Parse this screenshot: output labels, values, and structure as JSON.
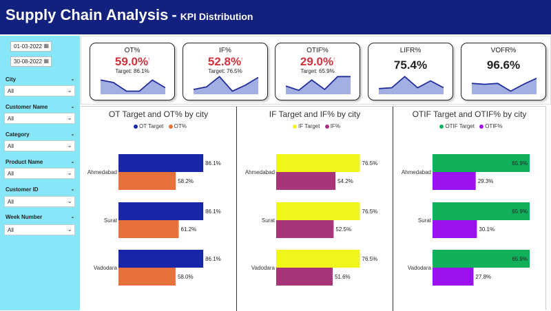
{
  "header": {
    "title": "Supply Chain Analysis",
    "separator": "-",
    "subtitle": "KPI Distribution",
    "color": "#13217e"
  },
  "filters": {
    "date_from": "01-03-2022",
    "date_to": "30-08-2022",
    "slicers": [
      {
        "label": "City",
        "value": "All"
      },
      {
        "label": "Customer Name",
        "value": "All"
      },
      {
        "label": "Category",
        "value": "All"
      },
      {
        "label": "Product Name",
        "value": "All"
      },
      {
        "label": "Customer ID",
        "value": "All"
      },
      {
        "label": "Week Number",
        "value": "All"
      }
    ]
  },
  "kpis": [
    {
      "label": "OT%",
      "value": "59.0%",
      "flag": "!",
      "target": "Target: 86.1%",
      "trend": [
        0.75,
        0.6,
        0.1,
        0.1,
        0.75,
        0.3
      ]
    },
    {
      "label": "IF%",
      "value": "52.8%",
      "flag": "!",
      "target": "Target: 76.5%",
      "trend": [
        0.2,
        0.35,
        0.95,
        0.1,
        0.45,
        0.9
      ]
    },
    {
      "label": "OTIF%",
      "value": "29.0%",
      "flag": "!",
      "target": "Target: 65.9%",
      "trend": [
        0.4,
        0.15,
        0.75,
        0.2,
        0.95,
        0.95
      ]
    },
    {
      "label": "LIFR%",
      "value": "75.4%",
      "flag": "",
      "target": "",
      "trend": [
        0.25,
        0.3,
        0.95,
        0.3,
        0.7,
        0.3
      ]
    },
    {
      "label": "VOFR%",
      "value": "96.6%",
      "flag": "",
      "target": "",
      "trend": [
        0.55,
        0.5,
        0.55,
        0.1,
        0.5,
        0.85
      ]
    }
  ],
  "chart_data": [
    {
      "type": "bar",
      "title": "OT Target and OT% by city",
      "categories": [
        "Ahmedabad",
        "Surat",
        "Vadodara"
      ],
      "series": [
        {
          "name": "OT Target",
          "values": [
            86.1,
            86.1,
            86.1
          ],
          "color": "#1726a8"
        },
        {
          "name": "OT%",
          "values": [
            58.2,
            61.2,
            58.0
          ],
          "color": "#e8703a"
        }
      ],
      "labels": [
        [
          "86.1%",
          "86.1%",
          "86.1%"
        ],
        [
          "58.2%",
          "61.2%",
          "58.0%"
        ]
      ],
      "xlim": [
        0,
        100
      ]
    },
    {
      "type": "bar",
      "title": "IF Target and IF% by city",
      "categories": [
        "Ahmedabad",
        "Surat",
        "Vadodara"
      ],
      "series": [
        {
          "name": "IF Target",
          "values": [
            76.5,
            76.5,
            76.5
          ],
          "color": "#f0f51a"
        },
        {
          "name": "IF%",
          "values": [
            54.2,
            52.5,
            51.6
          ],
          "color": "#a8357a"
        }
      ],
      "labels": [
        [
          "76.5%",
          "76.5%",
          "76.5%"
        ],
        [
          "54.2%",
          "52.5%",
          "51.6%"
        ]
      ],
      "xlim": [
        0,
        90
      ]
    },
    {
      "type": "bar",
      "title": "OTIF Target and OTIF% by city",
      "categories": [
        "Ahmedabad",
        "Surat",
        "Vadodara"
      ],
      "series": [
        {
          "name": "OTIF Target",
          "values": [
            65.9,
            65.9,
            65.9
          ],
          "color": "#11b15b"
        },
        {
          "name": "OTIF%",
          "values": [
            29.3,
            30.1,
            27.8
          ],
          "color": "#9a12ef"
        }
      ],
      "labels": [
        [
          "65.9%",
          "65.9%",
          "65.9%"
        ],
        [
          "29.3%",
          "30.1%",
          "27.8%"
        ]
      ],
      "xlim": [
        0,
        65.9
      ]
    }
  ]
}
